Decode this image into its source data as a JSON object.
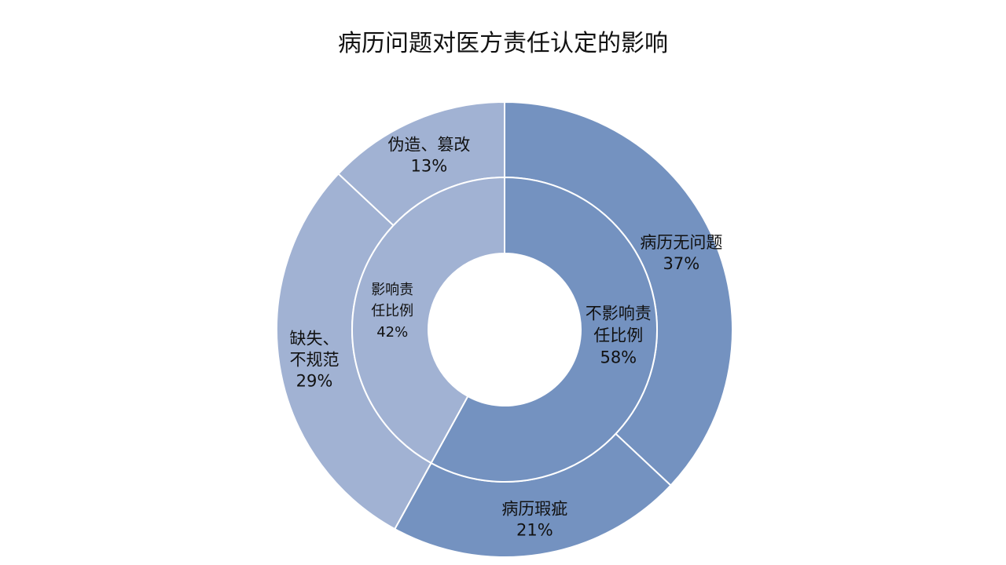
{
  "chart_data": {
    "type": "pie",
    "subtype": "nested-donut",
    "title": "病历问题对医方责任认定的影响",
    "colors": {
      "dark": "#7492c0",
      "light": "#a1b2d3",
      "border": "#ffffff"
    },
    "inner_ring": [
      {
        "name_lines": [
          "不影响责",
          "任比例"
        ],
        "value": 58,
        "value_label": "58%",
        "color": "#7492c0"
      },
      {
        "name_lines": [
          "影响责",
          "任比例"
        ],
        "value": 42,
        "value_label": "42%",
        "color": "#a1b2d3"
      }
    ],
    "outer_ring": [
      {
        "name_lines": [
          "病历无问题"
        ],
        "value": 37,
        "value_label": "37%",
        "color": "#7492c0"
      },
      {
        "name_lines": [
          "病历瑕疵"
        ],
        "value": 21,
        "value_label": "21%",
        "color": "#7492c0"
      },
      {
        "name_lines": [
          "缺失、",
          "不规范"
        ],
        "value": 29,
        "value_label": "29%",
        "color": "#a1b2d3"
      },
      {
        "name_lines": [
          "伪造、篡改"
        ],
        "value": 13,
        "value_label": "13%",
        "color": "#a1b2d3"
      }
    ]
  }
}
